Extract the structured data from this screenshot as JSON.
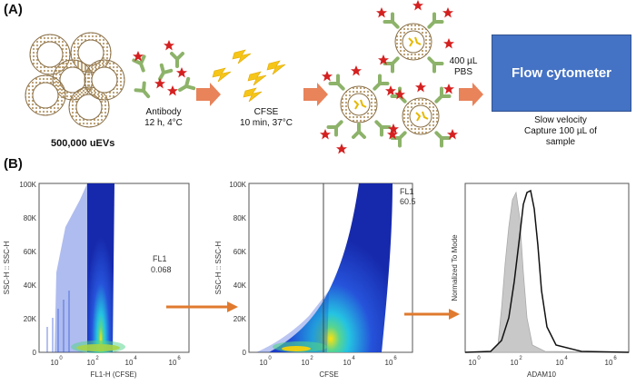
{
  "panels": {
    "a": "(A)",
    "b": "(B)"
  },
  "steps": {
    "uev_count": "500,000 uEVs",
    "antibody_line1": "Antibody",
    "antibody_line2": "12 h, 4°C",
    "cfse_line1": "CFSE",
    "cfse_line2": "10 min, 37°C",
    "pbs_line1": "400 µL",
    "pbs_line2": "PBS",
    "flow_box": "Flow cytometer",
    "flow_note1": "Slow velocity",
    "flow_note2": "Capture 100 µL of",
    "flow_note3": "sample"
  },
  "colors": {
    "arrow": "#e8835a",
    "flow_box": "#4472c4",
    "orange_arrow": "#e07a2e",
    "star": "#d42020",
    "antibody": "#8db36a"
  },
  "plot1": {
    "ylabel": "SSC-H :: SSC-H",
    "xlabel": "FL1-H (CFSE)",
    "yticks": [
      "0",
      "20K",
      "40K",
      "60K",
      "80K",
      "100K"
    ],
    "xticks": [
      "10",
      "10",
      "10",
      "10"
    ],
    "xexps": [
      "0",
      "2",
      "4",
      "6"
    ],
    "gate_label": "FL1",
    "gate_value": "0.068"
  },
  "plot2": {
    "ylabel": "SSC-H :: SSC-H",
    "xlabel": "CFSE",
    "yticks": [
      "0",
      "20K",
      "40K",
      "60K",
      "80K",
      "100K"
    ],
    "xticks": [
      "10",
      "10",
      "10",
      "10"
    ],
    "xexps": [
      "0",
      "2",
      "4",
      "6"
    ],
    "gate_label": "FL1",
    "gate_value": "60.5"
  },
  "plot3": {
    "ylabel": "Normalized To Mode",
    "xlabel": "ADAM10",
    "xticks": [
      "10",
      "10",
      "10",
      "10"
    ],
    "xexps": [
      "0",
      "2",
      "4",
      "6"
    ]
  }
}
